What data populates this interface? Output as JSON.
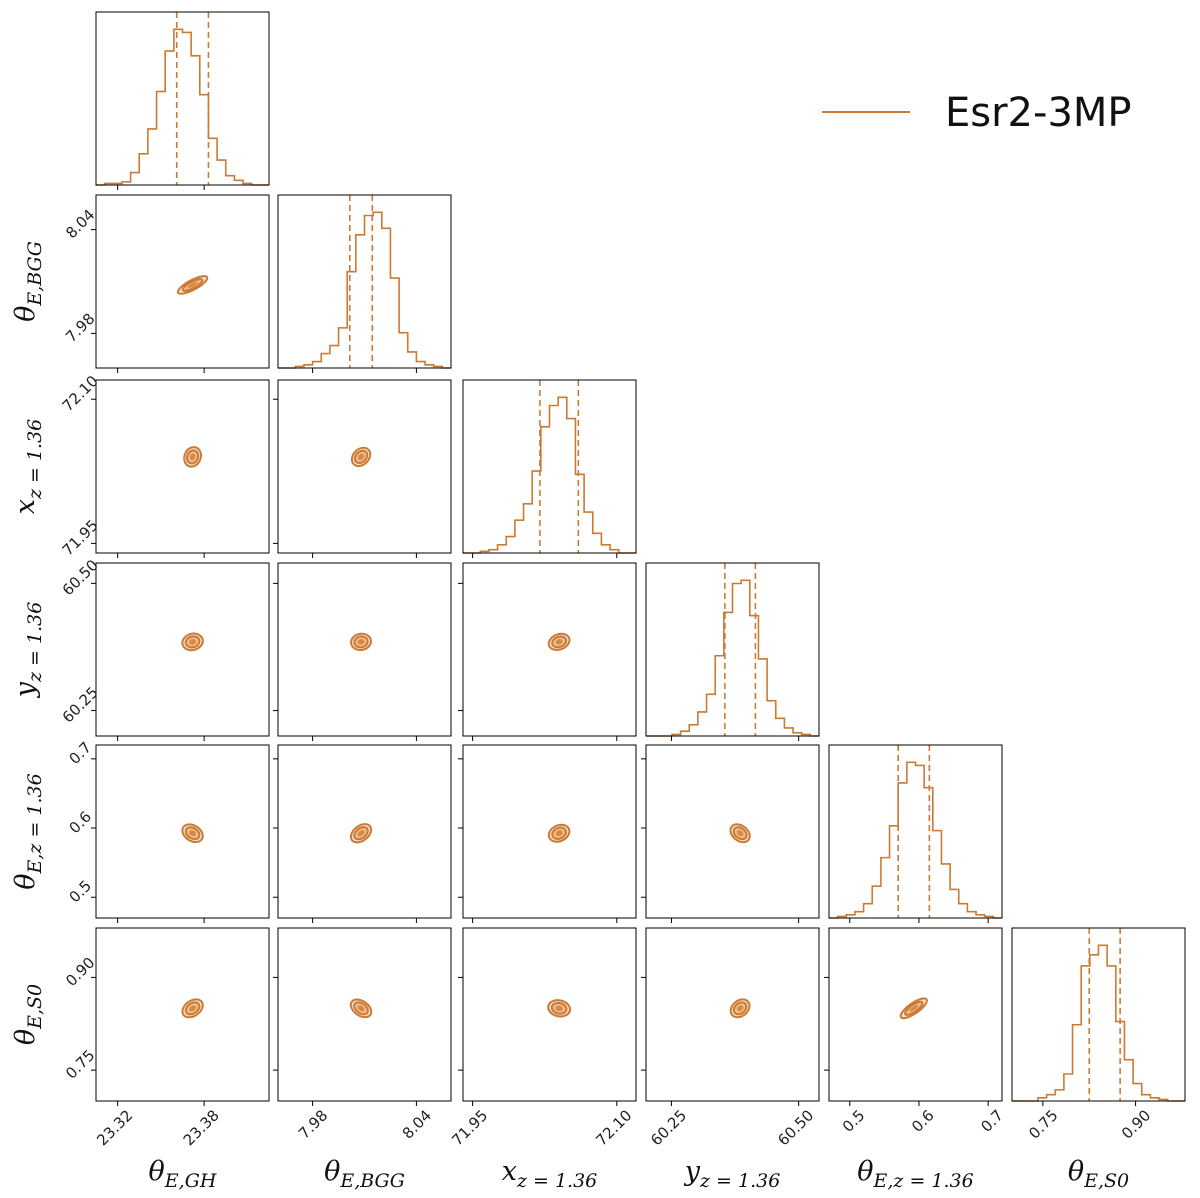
{
  "chart_data": {
    "type": "corner",
    "legend": {
      "label": "Esr2-3MP",
      "placement": "top-right"
    },
    "colors": {
      "line": "#cc7a33",
      "fill_outer": "#f5e0cb",
      "fill_middle": "#e8bd94",
      "fill_inner": "#d8893f",
      "frame": "#000000"
    },
    "parameters": [
      {
        "name": "theta_E_GH",
        "label": "θE,GH",
        "center": 23.372,
        "sigma": 0.011,
        "q16": 23.361,
        "q84": 23.383,
        "range": [
          23.305,
          23.425
        ],
        "ticks": [
          23.32,
          23.38
        ],
        "tick_labels": [
          "23.32",
          "23.38"
        ],
        "hist": [
          0,
          1,
          1,
          2,
          8,
          20,
          36,
          60,
          86,
          100,
          98,
          83,
          58,
          30,
          16,
          6,
          3,
          1,
          0,
          0
        ]
      },
      {
        "name": "theta_E_BGG",
        "label": "θE,BGG",
        "center": 8.008,
        "sigma": 0.0065,
        "q16": 8.0015,
        "q84": 8.0145,
        "range": [
          7.96,
          8.06
        ],
        "ticks": [
          7.98,
          8.04
        ],
        "tick_labels": [
          "7.98",
          "8.04"
        ],
        "hist": [
          0,
          0,
          1,
          2,
          4,
          9,
          14,
          25,
          60,
          83,
          95,
          97,
          87,
          56,
          22,
          10,
          4,
          2,
          1,
          0
        ]
      },
      {
        "name": "x_z136",
        "label": "xz = 1.36",
        "center": 72.04,
        "sigma": 0.02,
        "q16": 72.02,
        "q84": 72.06,
        "range": [
          71.94,
          72.12
        ],
        "ticks": [
          71.95,
          72.1
        ],
        "tick_labels": [
          "71.95",
          "72.10"
        ],
        "hist": [
          0,
          0,
          1,
          2,
          5,
          10,
          20,
          30,
          50,
          77,
          90,
          95,
          82,
          48,
          25,
          12,
          5,
          2,
          0,
          0
        ]
      },
      {
        "name": "y_z136",
        "label": "yz = 1.36",
        "center": 60.385,
        "sigma": 0.03,
        "q16": 60.355,
        "q84": 60.415,
        "range": [
          60.2,
          60.54
        ],
        "ticks": [
          60.25,
          60.5
        ],
        "tick_labels": [
          "60.25",
          "60.50"
        ],
        "hist": [
          0,
          0,
          0,
          1,
          3,
          7,
          15,
          26,
          50,
          77,
          95,
          97,
          75,
          48,
          22,
          11,
          5,
          2,
          1,
          0
        ]
      },
      {
        "name": "theta_E_z136",
        "label": "θE,z = 1.36",
        "center": 0.5925,
        "sigma": 0.025,
        "q16": 0.57,
        "q84": 0.615,
        "range": [
          0.47,
          0.72
        ],
        "ticks": [
          0.5,
          0.6,
          0.7
        ],
        "tick_labels": [
          "0.5",
          "0.6",
          "0.7"
        ],
        "hist": [
          0,
          1,
          2,
          4,
          9,
          20,
          38,
          58,
          85,
          98,
          96,
          82,
          55,
          34,
          18,
          9,
          4,
          2,
          1,
          0
        ]
      },
      {
        "name": "theta_E_S0",
        "label": "θE,S0",
        "center": 0.85,
        "sigma": 0.02,
        "q16": 0.825,
        "q84": 0.875,
        "range": [
          0.7,
          0.98
        ],
        "ticks": [
          0.75,
          0.9
        ],
        "tick_labels": [
          "0.75",
          "0.90"
        ],
        "hist": [
          0,
          0,
          0,
          2,
          4,
          7,
          17,
          48,
          85,
          92,
          98,
          85,
          50,
          26,
          11,
          4,
          2,
          1,
          0,
          0
        ]
      }
    ],
    "contours": [
      {
        "row": 1,
        "col": 0,
        "rx": 0.095,
        "ry": 0.028,
        "angle": 28
      },
      {
        "row": 2,
        "col": 0,
        "rx": 0.058,
        "ry": 0.047,
        "angle": 68
      },
      {
        "row": 2,
        "col": 1,
        "rx": 0.06,
        "ry": 0.045,
        "angle": 45
      },
      {
        "row": 3,
        "col": 0,
        "rx": 0.06,
        "ry": 0.047,
        "angle": 15
      },
      {
        "row": 3,
        "col": 1,
        "rx": 0.058,
        "ry": 0.047,
        "angle": 10
      },
      {
        "row": 3,
        "col": 2,
        "rx": 0.062,
        "ry": 0.044,
        "angle": 20
      },
      {
        "row": 4,
        "col": 0,
        "rx": 0.064,
        "ry": 0.045,
        "angle": -33
      },
      {
        "row": 4,
        "col": 1,
        "rx": 0.066,
        "ry": 0.043,
        "angle": 38
      },
      {
        "row": 4,
        "col": 2,
        "rx": 0.062,
        "ry": 0.046,
        "angle": 25
      },
      {
        "row": 4,
        "col": 3,
        "rx": 0.062,
        "ry": 0.044,
        "angle": -38
      },
      {
        "row": 5,
        "col": 0,
        "rx": 0.065,
        "ry": 0.044,
        "angle": 35
      },
      {
        "row": 5,
        "col": 1,
        "rx": 0.066,
        "ry": 0.042,
        "angle": -35
      },
      {
        "row": 5,
        "col": 2,
        "rx": 0.064,
        "ry": 0.046,
        "angle": -12
      },
      {
        "row": 5,
        "col": 3,
        "rx": 0.06,
        "ry": 0.045,
        "angle": 40
      },
      {
        "row": 5,
        "col": 4,
        "rx": 0.09,
        "ry": 0.03,
        "angle": 35
      }
    ],
    "levels": [
      1,
      2,
      3
    ]
  }
}
